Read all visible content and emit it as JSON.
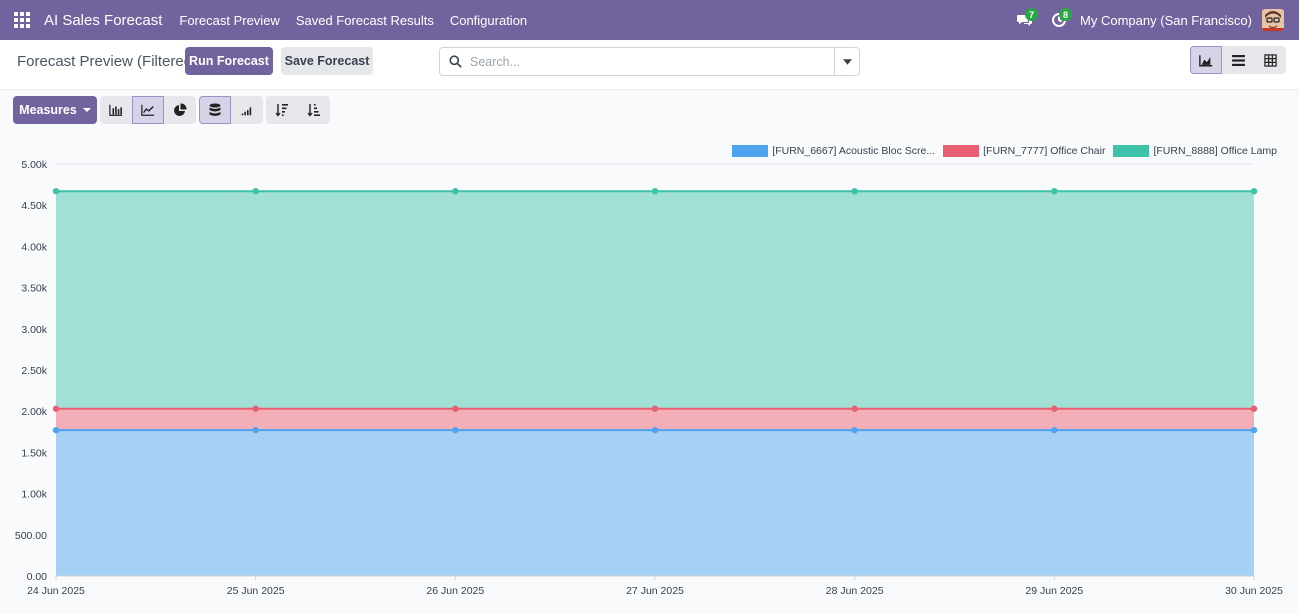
{
  "navbar": {
    "brand": "AI Sales Forecast",
    "menu": [
      "Forecast Preview",
      "Saved Forecast Results",
      "Configuration"
    ],
    "messages_count": "7",
    "activities_count": "8",
    "company": "My Company (San Francisco)"
  },
  "control": {
    "title": "Forecast Preview (Filtered)",
    "run_label": "Run Forecast",
    "save_label": "Save Forecast",
    "search_placeholder": "Search..."
  },
  "toolbar": {
    "measures_label": "Measures"
  },
  "colors": {
    "navbar": "#71639e",
    "series_1": "#4da3ee",
    "series_2": "#e85f73",
    "series_3": "#3ec2aa"
  },
  "chart_data": {
    "type": "area",
    "stacked": true,
    "x": [
      "24 Jun 2025",
      "25 Jun 2025",
      "26 Jun 2025",
      "27 Jun 2025",
      "28 Jun 2025",
      "29 Jun 2025",
      "30 Jun 2025"
    ],
    "y_ticks": [
      "0.00",
      "500.00",
      "1.00k",
      "1.50k",
      "2.00k",
      "2.50k",
      "3.00k",
      "3.50k",
      "4.00k",
      "4.50k",
      "5.00k"
    ],
    "ylim": [
      0,
      5000
    ],
    "legend_position": "top-right",
    "grid": true,
    "series": [
      {
        "name": "[FURN_6667] Acoustic Bloc Scre...",
        "values": [
          1770,
          1770,
          1770,
          1770,
          1770,
          1770,
          1770
        ]
      },
      {
        "name": "[FURN_7777] Office Chair",
        "values": [
          260,
          260,
          260,
          260,
          260,
          260,
          260
        ]
      },
      {
        "name": "[FURN_8888] Office Lamp",
        "values": [
          2640,
          2640,
          2640,
          2640,
          2640,
          2640,
          2640
        ]
      }
    ]
  }
}
